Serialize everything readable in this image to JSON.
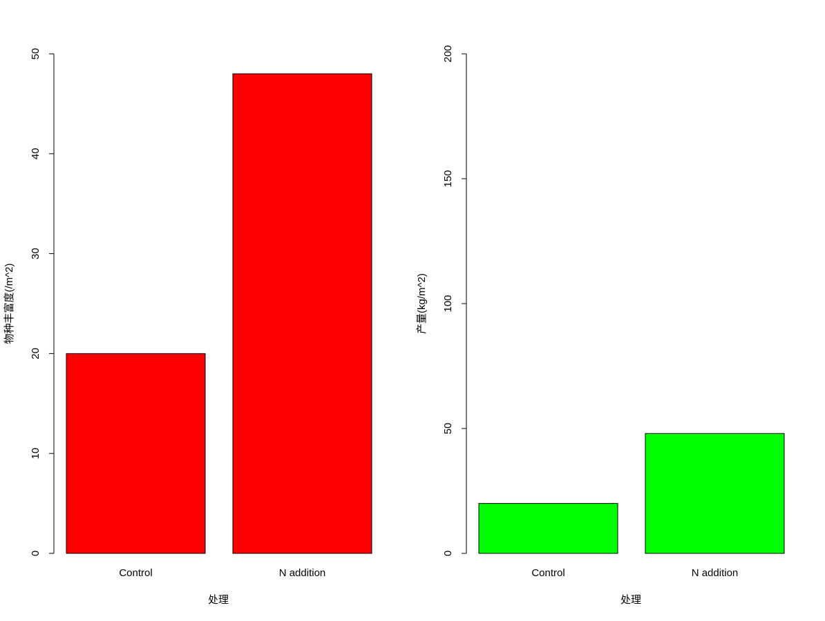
{
  "chart_data": [
    {
      "type": "bar",
      "categories": [
        "Control",
        "N addition"
      ],
      "values": [
        20,
        48
      ],
      "color": "#ff0000",
      "ylim": [
        0,
        50
      ],
      "yticks": [
        0,
        10,
        20,
        30,
        40,
        50
      ],
      "xlabel": "处理",
      "ylabel": "物种丰富度(/m^2)"
    },
    {
      "type": "bar",
      "categories": [
        "Control",
        "N addition"
      ],
      "values": [
        20,
        48
      ],
      "color": "#00ff00",
      "ylim": [
        0,
        200
      ],
      "yticks": [
        0,
        50,
        100,
        150,
        200
      ],
      "xlabel": "处理",
      "ylabel": "产量(kg/m^2)"
    }
  ]
}
